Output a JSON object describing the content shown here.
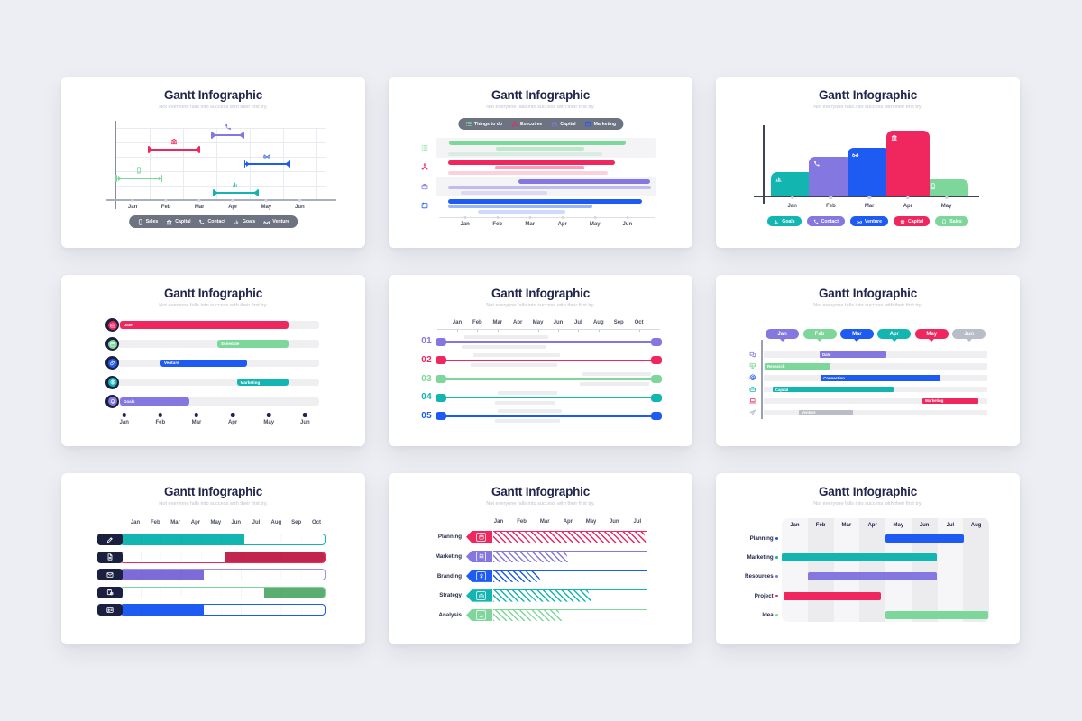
{
  "page": {
    "background": "#ECEEF3",
    "card_background": "#FFFFFF"
  },
  "palette": {
    "red": "#F0275E",
    "darkred": "#C2254D",
    "green": "#7ED79A",
    "darkgreen": "#5BAD72",
    "blue": "#1E5BF2",
    "purple": "#8577E0",
    "lightpurple": "#9C8EEA",
    "deeppurple": "#7C6BD9",
    "teal": "#12B5B0",
    "gray": "#B9BDC7",
    "navy": "#21254C",
    "iconbox": "#1C2040",
    "legendbg": "#6E7382",
    "track": "#EFEFF2",
    "band": "#F4F4F6",
    "gridline": "#EAEBF0"
  },
  "chart_data": [
    {
      "type": "arrow-gantt",
      "title": "Gantt Infographic",
      "subtitle": "Not everyone falls into success with their first try.",
      "months": [
        "Jan",
        "Feb",
        "Mar",
        "Apr",
        "May",
        "Jun"
      ],
      "rows": [
        {
          "label": "Contact",
          "icon": "phone",
          "color": "purple",
          "start": 45.8,
          "end": 61.1
        },
        {
          "label": "Capital",
          "icon": "bank",
          "color": "red",
          "start": 15.7,
          "end": 40
        },
        {
          "label": "Venture",
          "icon": "glasses",
          "color": "blue",
          "start": 61.5,
          "end": 83
        },
        {
          "label": "Sales",
          "icon": "mobile",
          "color": "green",
          "start": 0.4,
          "end": 22.2
        },
        {
          "label": "Goals",
          "icon": "chart",
          "color": "teal",
          "start": 46.5,
          "end": 67.9
        }
      ],
      "legend": [
        {
          "label": "Sales",
          "icon": "mobile"
        },
        {
          "label": "Capital",
          "icon": "bank"
        },
        {
          "label": "Contact",
          "icon": "phone"
        },
        {
          "label": "Goals",
          "icon": "chart"
        },
        {
          "label": "Venture",
          "icon": "glasses"
        }
      ]
    },
    {
      "type": "grouped-gantt",
      "title": "Gantt Infographic",
      "subtitle": "Not everyone falls into success with their first try.",
      "months": [
        "Jan",
        "Feb",
        "Mar",
        "Apr",
        "May",
        "Jun"
      ],
      "legend": [
        {
          "label": "Things to do",
          "icon": "list",
          "color": "green"
        },
        {
          "label": "Executive",
          "icon": "share",
          "color": "red"
        },
        {
          "label": "Capital",
          "icon": "briefcase",
          "color": "purple"
        },
        {
          "label": "Marketing",
          "icon": "calendar",
          "color": "blue"
        }
      ],
      "groups": [
        {
          "icon": "list",
          "color": "green",
          "bars": [
            [
              4.6,
              87.5
            ],
            [
              26.7,
              67.8
            ],
            [
              4.2,
              76.3
            ]
          ]
        },
        {
          "icon": "share",
          "color": "red",
          "bars": [
            [
              4.4,
              82.3
            ],
            [
              26.1,
              68.1
            ],
            [
              4.4,
              78.8
            ]
          ]
        },
        {
          "icon": "briefcase",
          "color": "purple",
          "bars": [
            [
              37.2,
              98.9
            ],
            [
              4.2,
              99.3
            ],
            [
              10,
              50.5
            ]
          ]
        },
        {
          "icon": "calendar",
          "color": "blue",
          "bars": [
            [
              4.4,
              95.1
            ],
            [
              4.4,
              71.6
            ],
            [
              18.1,
              59.1
            ]
          ]
        }
      ]
    },
    {
      "type": "column-chart",
      "title": "Gantt Infographic",
      "subtitle": "Not everyone falls into success with their first try.",
      "months": [
        "Jan",
        "Feb",
        "Mar",
        "Apr",
        "May"
      ],
      "columns": [
        {
          "label": "Goals",
          "icon": "chart",
          "color": "teal",
          "height": 37,
          "z": 1
        },
        {
          "label": "Contact",
          "icon": "phone",
          "color": "purple",
          "height": 60,
          "z": 1
        },
        {
          "label": "Venture",
          "icon": "glasses",
          "color": "blue",
          "height": 74,
          "z": 1
        },
        {
          "label": "Capital",
          "icon": "bank",
          "color": "red",
          "height": 100,
          "z": 2
        },
        {
          "label": "Sales",
          "icon": "mobile",
          "color": "green",
          "height": 26,
          "z": 1
        }
      ]
    },
    {
      "type": "icon-row-gantt",
      "title": "Gantt Infographic",
      "subtitle": "Not everyone falls into success with their first try.",
      "months": [
        "Jan",
        "Feb",
        "Mar",
        "Apr",
        "May",
        "Jun"
      ],
      "rows": [
        {
          "label": "Date",
          "icon": "briefcase",
          "color": "red",
          "start": 0.8,
          "end": 84.9
        },
        {
          "label": "Schedule",
          "icon": "calendar",
          "color": "green",
          "start": 49.3,
          "end": 84.9
        },
        {
          "label": "Venture",
          "icon": "paperclip",
          "color": "blue",
          "start": 21,
          "end": 64.1
        },
        {
          "label": "Marketing",
          "icon": "globe",
          "color": "teal",
          "start": 59,
          "end": 84.9
        },
        {
          "label": "Goals",
          "icon": "bell",
          "color": "purple",
          "start": 0.8,
          "end": 35.6
        }
      ]
    },
    {
      "type": "numbered-lines",
      "title": "Gantt Infographic",
      "subtitle": "Not everyone falls into success with their first try.",
      "months": [
        "Jan",
        "Feb",
        "Mar",
        "Apr",
        "May",
        "Jun",
        "Jul",
        "Aug",
        "Sep",
        "Oct"
      ],
      "rows": [
        {
          "num": "01",
          "color": "purple",
          "ghost": [
            12,
            50
          ]
        },
        {
          "num": "02",
          "color": "red",
          "ghost": [
            16,
            55
          ]
        },
        {
          "num": "03",
          "color": "green",
          "ghost": [
            65,
            96
          ]
        },
        {
          "num": "04",
          "color": "teal",
          "ghost": [
            27,
            54
          ]
        },
        {
          "num": "05",
          "color": "blue",
          "ghost": [
            27,
            56
          ]
        }
      ]
    },
    {
      "type": "balloon-gantt",
      "title": "Gantt Infographic",
      "subtitle": "Not everyone falls into success with their first try.",
      "months": [
        "Jan",
        "Feb",
        "Mar",
        "Apr",
        "May",
        "Jun"
      ],
      "monthColors": [
        "purple",
        "green",
        "blue",
        "teal",
        "red",
        "gray"
      ],
      "rows": [
        {
          "label": "Date",
          "icon": "chat",
          "color": "purple",
          "start": 25,
          "end": 55
        },
        {
          "label": "Research",
          "icon": "presentation",
          "color": "green",
          "start": 0.4,
          "end": 30
        },
        {
          "label": "Connection",
          "icon": "at",
          "color": "blue",
          "start": 25.5,
          "end": 79
        },
        {
          "label": "Capital",
          "icon": "briefcase",
          "color": "teal",
          "start": 4,
          "end": 58
        },
        {
          "label": "Marketing",
          "icon": "laptop",
          "color": "red",
          "start": 71,
          "end": 96
        },
        {
          "label": "Venture",
          "icon": "plane",
          "color": "gray",
          "start": 15.7,
          "end": 40
        }
      ]
    },
    {
      "type": "progress-gantt",
      "title": "Gantt Infographic",
      "subtitle": "Not everyone falls into success with their first try.",
      "months": [
        "Jan",
        "Feb",
        "Mar",
        "Apr",
        "May",
        "Jun",
        "Jul",
        "Aug",
        "Sep",
        "Oct"
      ],
      "rows": [
        {
          "icon": "pencil",
          "color": "teal",
          "fill": [
            0,
            60.6
          ]
        },
        {
          "icon": "document",
          "color": "red",
          "fillColor": "darkred",
          "fill": [
            50.8,
            100
          ]
        },
        {
          "icon": "envelope",
          "color": "lightpurple",
          "fillColor": "deeppurple",
          "fill": [
            0,
            40.7
          ]
        },
        {
          "icon": "clipboard",
          "color": "green",
          "fillColor": "darkgreen",
          "fill": [
            70.4,
            100
          ]
        },
        {
          "icon": "idcard",
          "color": "blue",
          "fill": [
            0,
            40.7
          ]
        }
      ]
    },
    {
      "type": "hatch-gantt",
      "title": "Gantt Infographic",
      "subtitle": "Not everyone falls into success with their first try.",
      "months": [
        "Jan",
        "Feb",
        "Mar",
        "Apr",
        "May",
        "Jun",
        "Jul"
      ],
      "rows": [
        {
          "label": "Planning",
          "icon": "calendar",
          "color": "red",
          "hatch": 100
        },
        {
          "label": "Marketing",
          "icon": "laptop",
          "color": "purple",
          "hatch": 49.5
        },
        {
          "label": "Branding",
          "icon": "award",
          "color": "blue",
          "hatch": 31
        },
        {
          "label": "Strategy",
          "icon": "briefcase",
          "color": "teal",
          "hatch": 64
        },
        {
          "label": "Analysis",
          "icon": "chart",
          "color": "green",
          "hatch": 44.7
        }
      ]
    },
    {
      "type": "grid-gantt",
      "title": "Gantt Infographic",
      "subtitle": "Not everyone falls into success with their first try.",
      "months": [
        "Jan",
        "Feb",
        "Mar",
        "Apr",
        "May",
        "Jun",
        "Jul",
        "Aug"
      ],
      "rows": [
        {
          "label": "Planning",
          "color": "blue",
          "start": 50.1,
          "end": 88
        },
        {
          "label": "Marketing",
          "color": "teal",
          "start": 0,
          "end": 74.7
        },
        {
          "label": "Resources",
          "color": "purple",
          "start": 12.6,
          "end": 74.7
        },
        {
          "label": "Project",
          "color": "red",
          "start": 1,
          "end": 47.8
        },
        {
          "label": "Idea",
          "color": "green",
          "start": 50.1,
          "end": 99.7
        }
      ]
    }
  ]
}
